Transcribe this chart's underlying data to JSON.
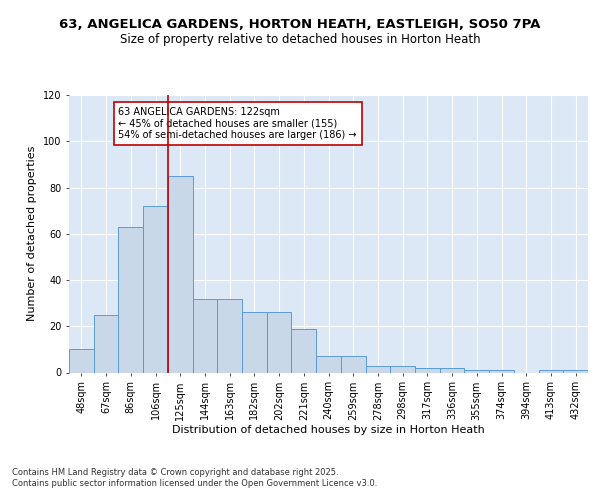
{
  "title_line1": "63, ANGELICA GARDENS, HORTON HEATH, EASTLEIGH, SO50 7PA",
  "title_line2": "Size of property relative to detached houses in Horton Heath",
  "xlabel": "Distribution of detached houses by size in Horton Heath",
  "ylabel": "Number of detached properties",
  "bin_labels": [
    "48sqm",
    "67sqm",
    "86sqm",
    "106sqm",
    "125sqm",
    "144sqm",
    "163sqm",
    "182sqm",
    "202sqm",
    "221sqm",
    "240sqm",
    "259sqm",
    "278sqm",
    "298sqm",
    "317sqm",
    "336sqm",
    "355sqm",
    "374sqm",
    "394sqm",
    "413sqm",
    "432sqm"
  ],
  "bar_heights": [
    10,
    25,
    63,
    72,
    85,
    32,
    32,
    26,
    26,
    19,
    7,
    7,
    3,
    3,
    2,
    2,
    1,
    1,
    0,
    1,
    1
  ],
  "bar_color": "#c8d8e8",
  "bar_edge_color": "#5b9bd5",
  "vline_x": 3.5,
  "vline_color": "#c00000",
  "annotation_text": "63 ANGELICA GARDENS: 122sqm\n← 45% of detached houses are smaller (155)\n54% of semi-detached houses are larger (186) →",
  "annotation_box_color": "white",
  "annotation_box_edge_color": "#c00000",
  "ylim": [
    0,
    120
  ],
  "yticks": [
    0,
    20,
    40,
    60,
    80,
    100,
    120
  ],
  "background_color": "#dce8f5",
  "footer_text": "Contains HM Land Registry data © Crown copyright and database right 2025.\nContains public sector information licensed under the Open Government Licence v3.0.",
  "title_fontsize": 9.5,
  "subtitle_fontsize": 8.5,
  "axis_label_fontsize": 8,
  "tick_fontsize": 7,
  "footer_fontsize": 6
}
